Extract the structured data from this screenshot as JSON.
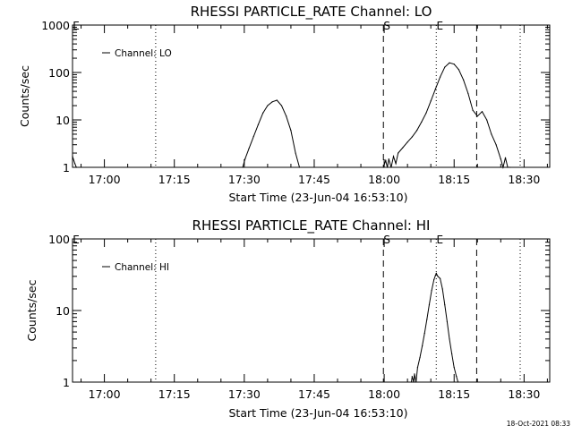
{
  "timestamp": "18-Oct-2021 08:33",
  "chart_data": [
    {
      "type": "line",
      "title": "RHESSI PARTICLE_RATE Channel: LO",
      "xlabel": "Start Time (23-Jun-04 16:53:10)",
      "ylabel": "Counts/sec",
      "y_scale": "log",
      "ylim": [
        1,
        1000
      ],
      "xlim": [
        "16:53:10",
        "18:35:30"
      ],
      "x_ticks": [
        "17:00",
        "17:15",
        "17:30",
        "17:45",
        "18:00",
        "18:15",
        "18:30"
      ],
      "y_ticks": [
        "1",
        "10",
        "100",
        "1000"
      ],
      "legend": "top-left",
      "series": [
        {
          "name": "Channel: LO",
          "x": [
            "16:53:10",
            "16:53:40",
            "16:54:00",
            "17:29:40",
            "17:30:10",
            "17:31:00",
            "17:32:00",
            "17:33:00",
            "17:34:00",
            "17:35:00",
            "17:36:00",
            "17:37:00",
            "17:38:00",
            "17:39:00",
            "17:40:00",
            "17:41:00",
            "17:41:50",
            "17:59:50",
            "18:00:20",
            "18:00:40",
            "18:01:00",
            "18:01:30",
            "18:02:00",
            "18:02:30",
            "18:03:00",
            "18:04:00",
            "18:05:00",
            "18:06:00",
            "18:07:00",
            "18:08:00",
            "18:09:00",
            "18:10:00",
            "18:11:00",
            "18:12:00",
            "18:13:00",
            "18:14:00",
            "18:15:00",
            "18:16:00",
            "18:17:00",
            "18:18:00",
            "18:19:00",
            "18:20:00",
            "18:21:00",
            "18:22:00",
            "18:23:00",
            "18:24:00",
            "18:25:00",
            "18:25:30",
            "18:26:00",
            "18:26:30",
            "18:27:00"
          ],
          "values": [
            1.7,
            1.2,
            1.0,
            1.0,
            1.5,
            2.5,
            4.5,
            8,
            14,
            20,
            24,
            26,
            20,
            12,
            6,
            2,
            1.0,
            1.0,
            1.4,
            1.0,
            1.5,
            1.0,
            1.7,
            1.2,
            2.0,
            2.6,
            3.4,
            4.4,
            6,
            9,
            14,
            25,
            45,
            80,
            130,
            160,
            150,
            115,
            70,
            36,
            16,
            12,
            15,
            10,
            5,
            3,
            1.5,
            1.0,
            1.6,
            1.0,
            1.0
          ]
        }
      ],
      "markers": {
        "S_label": "S",
        "E_label": "E",
        "dashed": [
          "17:59:50",
          "18:19:50"
        ],
        "dotted": [
          "17:11:00",
          "18:11:10",
          "18:29:10"
        ]
      }
    },
    {
      "type": "line",
      "title": "RHESSI PARTICLE_RATE Channel: HI",
      "xlabel": "Start Time (23-Jun-04 16:53:10)",
      "ylabel": "Counts/sec",
      "y_scale": "log",
      "ylim": [
        1,
        100
      ],
      "xlim": [
        "16:53:10",
        "18:35:30"
      ],
      "x_ticks": [
        "17:00",
        "17:15",
        "17:30",
        "17:45",
        "18:00",
        "18:15",
        "18:30"
      ],
      "y_ticks": [
        "1",
        "10",
        "100"
      ],
      "legend": "top-left",
      "series": [
        {
          "name": "Channel: HI",
          "x": [
            "18:05:50",
            "18:06:00",
            "18:06:20",
            "18:06:30",
            "18:06:50",
            "18:07:10",
            "18:07:40",
            "18:08:10",
            "18:08:40",
            "18:09:10",
            "18:09:40",
            "18:10:10",
            "18:10:40",
            "18:11:00",
            "18:11:10",
            "18:11:30",
            "18:12:00",
            "18:12:30",
            "18:13:00",
            "18:13:30",
            "18:14:00",
            "18:14:30",
            "18:15:00",
            "18:15:30",
            "18:15:50"
          ],
          "values": [
            1.0,
            1.2,
            1.0,
            1.3,
            1.0,
            1.6,
            2.2,
            3.2,
            4.8,
            7.5,
            12,
            19,
            27,
            31,
            33,
            30,
            28,
            20,
            12,
            7,
            4,
            2.5,
            1.6,
            1.2,
            1.0
          ]
        }
      ],
      "markers": {
        "S_label": "S",
        "E_label": "E",
        "dashed": [
          "17:59:50",
          "18:19:50"
        ],
        "dotted": [
          "17:11:00",
          "18:11:10",
          "18:29:10"
        ]
      }
    }
  ]
}
